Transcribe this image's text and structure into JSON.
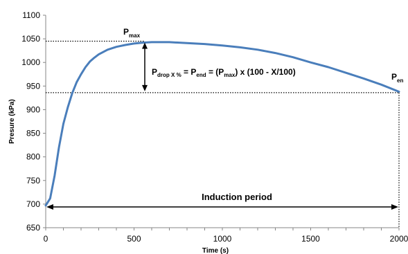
{
  "chart_data": {
    "type": "line",
    "title": "",
    "xlabel": "Time (s)",
    "ylabel": "Presure (kPa)",
    "xlim": [
      0,
      2000
    ],
    "ylim": [
      650,
      1100
    ],
    "x_ticks": [
      0,
      500,
      1000,
      1500,
      2000
    ],
    "y_ticks": [
      650,
      700,
      750,
      800,
      850,
      900,
      950,
      1000,
      1050,
      1100
    ],
    "grid": false,
    "legend": "none",
    "series": [
      {
        "color": "#4a7ebb",
        "x": [
          0,
          25,
          50,
          75,
          100,
          125,
          150,
          175,
          200,
          225,
          250,
          275,
          300,
          350,
          400,
          450,
          500,
          550,
          600,
          650,
          700,
          800,
          900,
          1000,
          1100,
          1200,
          1300,
          1400,
          1500,
          1600,
          1700,
          1800,
          1900,
          2000
        ],
        "y": [
          697,
          712,
          760,
          820,
          870,
          905,
          935,
          958,
          975,
          990,
          1002,
          1010,
          1017,
          1027,
          1033,
          1037,
          1040,
          1042,
          1043,
          1043,
          1043,
          1041,
          1039,
          1036,
          1032,
          1027,
          1020,
          1011,
          1000,
          990,
          978,
          966,
          953,
          938
        ]
      }
    ],
    "reference_lines": {
      "p_max_value": 1045,
      "p_max_time": 560,
      "p_end_value": 936,
      "p_end_time": 2000
    },
    "annotations": {
      "p_max_main": "P",
      "p_max_sub": "max",
      "p_end_main": "P",
      "p_end_sub": "en",
      "formula": [
        {
          "text": "P",
          "sub": false
        },
        {
          "text": "drop X %",
          "sub": true
        },
        {
          "text": " = P",
          "sub": false
        },
        {
          "text": "end",
          "sub": true
        },
        {
          "text": " = (P",
          "sub": false
        },
        {
          "text": "max",
          "sub": true
        },
        {
          "text": ") x (100 - X/100)",
          "sub": false
        }
      ],
      "induction_label": "Induction period"
    }
  }
}
